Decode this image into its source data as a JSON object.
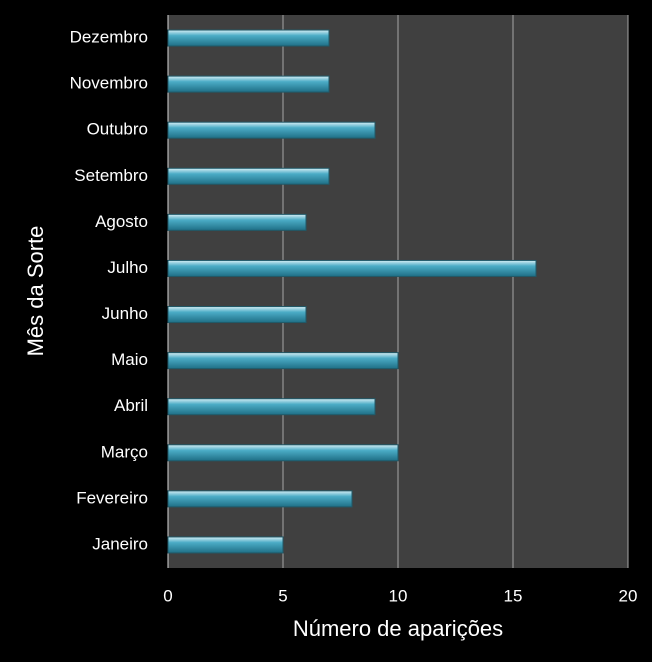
{
  "chart_data": {
    "type": "bar",
    "orientation": "horizontal",
    "x_label": "Número de aparições",
    "y_label": "Mês da Sorte",
    "categories": [
      "Janeiro",
      "Fevereiro",
      "Março",
      "Abril",
      "Maio",
      "Junho",
      "Julho",
      "Agosto",
      "Setembro",
      "Outubro",
      "Novembro",
      "Dezembro"
    ],
    "values": [
      5,
      8,
      10,
      9,
      10,
      6,
      16,
      6,
      7,
      9,
      7,
      7
    ],
    "color": "#4bacc6",
    "xlim": [
      0,
      20
    ],
    "xticks": [
      0,
      5,
      10,
      15,
      20
    ],
    "grid": true
  }
}
